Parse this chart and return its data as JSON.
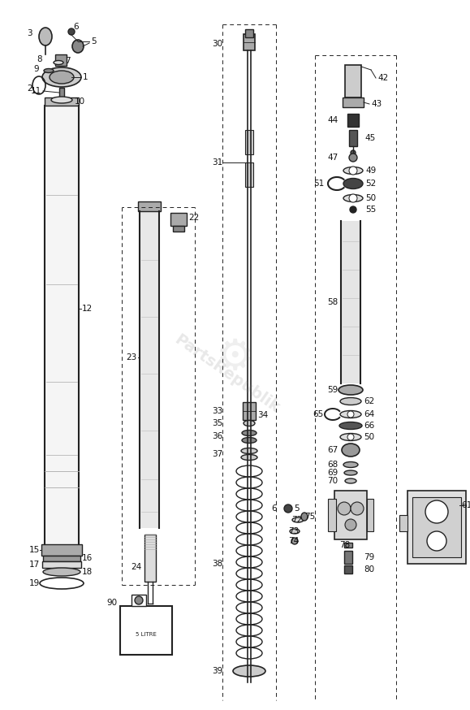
{
  "bg_color": "#ffffff",
  "line_color": "#222222",
  "label_color": "#111111",
  "fig_width": 5.79,
  "fig_height": 8.74,
  "dpi": 100
}
